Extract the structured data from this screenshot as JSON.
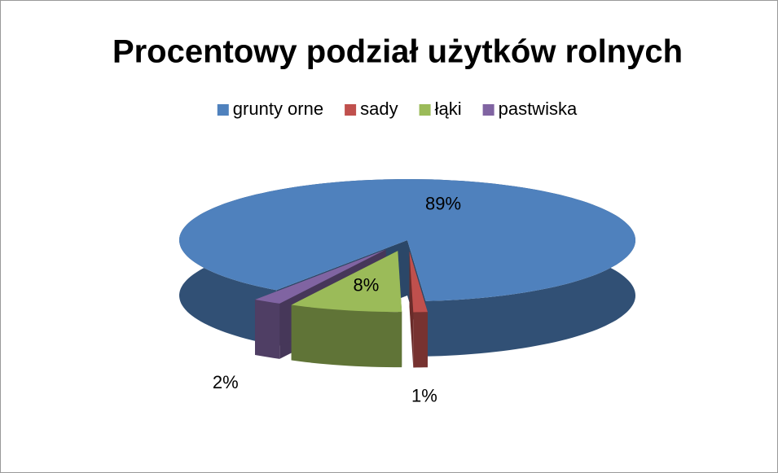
{
  "chart_data": {
    "type": "pie",
    "title": "Procentowy podział użytków rolnych",
    "categories": [
      "grunty orne",
      "sady",
      "łąki",
      "pastwiska"
    ],
    "values": [
      89,
      1,
      8,
      2
    ],
    "value_labels": [
      "89%",
      "1%",
      "8%",
      "2%"
    ],
    "colors": [
      "#4f81bd",
      "#c0504d",
      "#9bbb59",
      "#8064a2"
    ],
    "legend": "top"
  }
}
